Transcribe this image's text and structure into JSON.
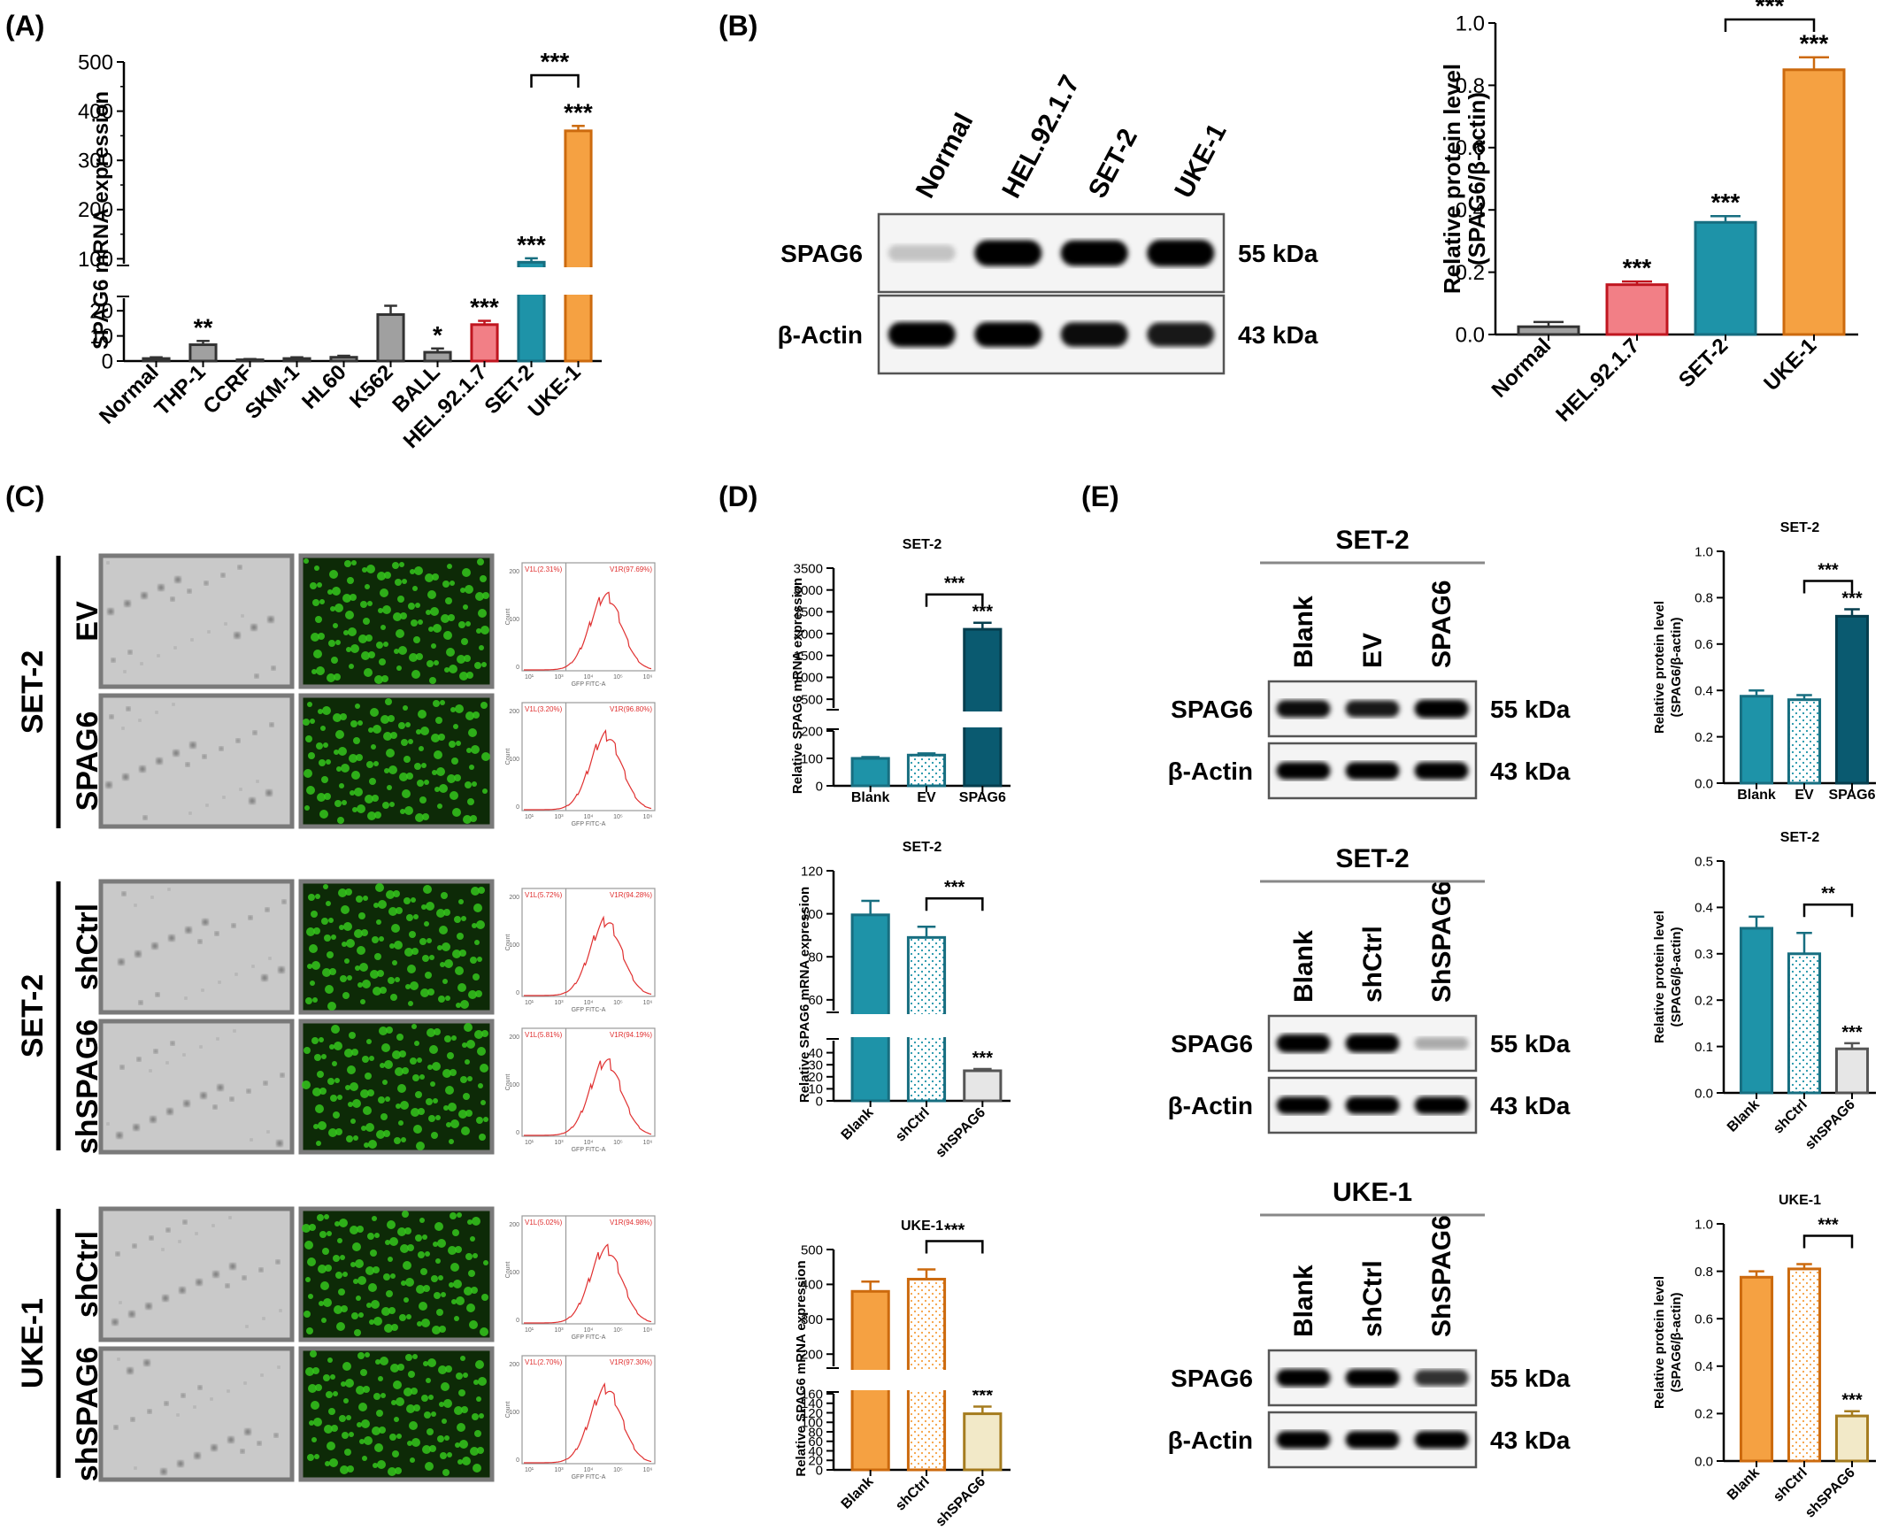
{
  "panel_labels": [
    "(A)",
    "(B)",
    "(C)",
    "(D)",
    "(E)"
  ],
  "colors": {
    "gray": "#a0a0a0",
    "red": "#f27f86",
    "teal": "#1e93a8",
    "orange": "#f5a142",
    "dark_teal": "#0a5a70",
    "light": "#e6e6e6",
    "cream": "#f2e9c8",
    "green": "#35c51c"
  },
  "panelB_blot": {
    "lanes": [
      "Normal",
      "HEL.92.1.7",
      "SET-2",
      "UKE-1"
    ],
    "rows": [
      {
        "name": "SPAG6",
        "size": "55 kDa"
      },
      {
        "name": "β-Actin",
        "size": "43 kDa"
      }
    ]
  },
  "panelC": {
    "groups": [
      {
        "cell": "SET-2",
        "rows": [
          {
            "label": "EV",
            "v1l": "V1L(2.31%)",
            "v1r": "V1R(97.69%)"
          },
          {
            "label": "SPAG6",
            "v1l": "V1L(3.20%)",
            "v1r": "V1R(96.80%)"
          }
        ]
      },
      {
        "cell": "SET-2",
        "rows": [
          {
            "label": "shCtrl",
            "v1l": "V1L(5.72%)",
            "v1r": "V1R(94.28%)"
          },
          {
            "label": "shSPAG6",
            "v1l": "V1L(5.81%)",
            "v1r": "V1R(94.19%)"
          }
        ]
      },
      {
        "cell": "UKE-1",
        "rows": [
          {
            "label": "shCtrl",
            "v1l": "V1L(5.02%)",
            "v1r": "V1R(94.98%)"
          },
          {
            "label": "shSPAG6",
            "v1l": "V1L(2.70%)",
            "v1r": "V1R(97.30%)"
          }
        ]
      }
    ],
    "flow_xlabel": "GFP FITC-A",
    "flow_ylabel": "Count",
    "flow_xticks": [
      "10¹",
      "10³",
      "10⁴",
      "10⁵",
      "10⁶"
    ],
    "flow_yticks": [
      "200",
      "100",
      "0"
    ]
  },
  "panelE_blots": [
    {
      "title": "SET-2",
      "lanes": [
        "Blank",
        "EV",
        "SPAG6"
      ],
      "rows": [
        {
          "name": "SPAG6",
          "size": "55 kDa"
        },
        {
          "name": "β-Actin",
          "size": "43 kDa"
        }
      ]
    },
    {
      "title": "SET-2",
      "lanes": [
        "Blank",
        "shCtrl",
        "ShSPAG6"
      ],
      "rows": [
        {
          "name": "SPAG6",
          "size": "55 kDa"
        },
        {
          "name": "β-Actin",
          "size": "43 kDa"
        }
      ]
    },
    {
      "title": "UKE-1",
      "lanes": [
        "Blank",
        "shCtrl",
        "ShSPAG6"
      ],
      "rows": [
        {
          "name": "SPAG6",
          "size": "55 kDa"
        },
        {
          "name": "β-Actin",
          "size": "43 kDa"
        }
      ]
    }
  ],
  "chart_data": [
    {
      "id": "A",
      "type": "bar",
      "title": "",
      "ylabel": "SPAG6 mRNA expression",
      "categories": [
        "Normal",
        "THP-1",
        "CCRF",
        "SKM-1",
        "HL60",
        "K562",
        "BALL",
        "HEL.92.1.7",
        "SET-2",
        "UKE-1"
      ],
      "values": [
        1,
        6.5,
        0.5,
        1,
        1.5,
        18.5,
        3.5,
        14.5,
        93,
        360
      ],
      "errors": [
        0.5,
        1.5,
        0.3,
        0.5,
        0.6,
        3.5,
        1.5,
        1.5,
        8,
        10
      ],
      "colors": [
        "gray",
        "gray",
        "gray",
        "gray",
        "gray",
        "gray",
        "gray",
        "red",
        "teal",
        "orange"
      ],
      "stars": [
        "",
        "**",
        "",
        "",
        "",
        "***",
        "*",
        "***",
        "***",
        "***"
      ],
      "comparison": {
        "from": 8,
        "to": 9,
        "label": "***"
      },
      "axis_break": {
        "lower": [
          0,
          25
        ],
        "upper": [
          90,
          500
        ]
      },
      "lower_ticks": [
        0,
        10,
        20
      ],
      "upper_ticks": [
        100,
        200,
        300,
        400,
        500
      ]
    },
    {
      "id": "B",
      "type": "bar",
      "title": "",
      "ylabel": "Relative protein level",
      "ylabel2": "(SPAG6/β-actin)",
      "categories": [
        "Normal",
        "HEL.92.1.7",
        "SET-2",
        "UKE-1"
      ],
      "values": [
        0.025,
        0.16,
        0.36,
        0.85
      ],
      "errors": [
        0.015,
        0.01,
        0.02,
        0.04
      ],
      "colors": [
        "gray",
        "red",
        "teal",
        "orange"
      ],
      "stars": [
        "",
        "***",
        "***",
        "***"
      ],
      "comparison": {
        "from": 2,
        "to": 3,
        "label": "***"
      },
      "ylim": [
        0,
        1.0
      ],
      "yticks": [
        "0.0",
        "0.2",
        "0.4",
        "0.6",
        "0.8",
        "1.0"
      ]
    },
    {
      "id": "D1",
      "type": "bar",
      "title": "SET-2",
      "ylabel": "Relative SPAG6 mRNA expression",
      "categories": [
        "Blank",
        "EV",
        "SPAG6"
      ],
      "values": [
        100,
        112,
        2100
      ],
      "errors": [
        5,
        6,
        150
      ],
      "colors": [
        "teal",
        "dotted-teal",
        "dark_teal"
      ],
      "stars": [
        "",
        "",
        "***"
      ],
      "comparison": {
        "from": 1,
        "to": 2,
        "label": "***"
      },
      "axis_break": {
        "lower": [
          0,
          200
        ],
        "upper": [
          300,
          3500
        ]
      },
      "lower_ticks": [
        0,
        100,
        200
      ],
      "upper_ticks": [
        500,
        1000,
        1500,
        2000,
        2500,
        3000,
        3500
      ]
    },
    {
      "id": "D2",
      "type": "bar",
      "title": "SET-2",
      "ylabel": "Relative SPAG6 mRNA expression",
      "categories": [
        "Blank",
        "shCtrl",
        "shSPAG6"
      ],
      "values": [
        99.5,
        89,
        25
      ],
      "errors": [
        6.5,
        5,
        1.5
      ],
      "colors": [
        "teal",
        "dotted-teal",
        "light"
      ],
      "stars": [
        "",
        "",
        "***"
      ],
      "comparison": {
        "from": 1,
        "to": 2,
        "label": "***"
      },
      "axis_break": {
        "lower": [
          0,
          50
        ],
        "upper": [
          55,
          120
        ]
      },
      "lower_ticks": [
        0,
        10,
        20,
        30,
        40
      ],
      "upper_ticks": [
        60,
        80,
        100,
        120
      ]
    },
    {
      "id": "D3",
      "type": "bar",
      "title": "UKE-1",
      "ylabel": "Relative SPAG6 mRNA expression",
      "categories": [
        "Blank",
        "shCtrl",
        "shSPAG6"
      ],
      "values": [
        380,
        415,
        118
      ],
      "errors": [
        28,
        28,
        15
      ],
      "colors": [
        "orange",
        "dotted-orange",
        "cream"
      ],
      "stars": [
        "",
        "",
        "***"
      ],
      "comparison": {
        "from": 1,
        "to": 2,
        "label": "***"
      },
      "axis_break": {
        "lower": [
          0,
          160
        ],
        "upper": [
          165,
          500
        ]
      },
      "lower_ticks": [
        0,
        20,
        40,
        60,
        80,
        100,
        120,
        140,
        160
      ],
      "upper_ticks": [
        200,
        300,
        400,
        500
      ]
    },
    {
      "id": "E1",
      "type": "bar",
      "title": "SET-2",
      "ylabel": "Relative protein level",
      "ylabel2": "(SPAG6/β-actin)",
      "categories": [
        "Blank",
        "EV",
        "SPAG6"
      ],
      "values": [
        0.375,
        0.36,
        0.72
      ],
      "errors": [
        0.025,
        0.02,
        0.03
      ],
      "colors": [
        "teal",
        "dotted-teal",
        "dark_teal"
      ],
      "stars": [
        "",
        "",
        "***"
      ],
      "comparison": {
        "from": 1,
        "to": 2,
        "label": "***"
      },
      "ylim": [
        0,
        1.0
      ],
      "yticks": [
        "0.0",
        "0.2",
        "0.4",
        "0.6",
        "0.8",
        "1.0"
      ]
    },
    {
      "id": "E2",
      "type": "bar",
      "title": "SET-2",
      "ylabel": "Relative protein level",
      "ylabel2": "(SPAG6/β-actin)",
      "categories": [
        "Blank",
        "shCtrl",
        "shSPAG6"
      ],
      "values": [
        0.355,
        0.3,
        0.095
      ],
      "errors": [
        0.025,
        0.045,
        0.012
      ],
      "colors": [
        "teal",
        "dotted-teal",
        "light"
      ],
      "stars": [
        "",
        "",
        "***"
      ],
      "comparison": {
        "from": 1,
        "to": 2,
        "label": "**"
      },
      "ylim": [
        0,
        0.5
      ],
      "yticks": [
        "0.0",
        "0.1",
        "0.2",
        "0.3",
        "0.4",
        "0.5"
      ]
    },
    {
      "id": "E3",
      "type": "bar",
      "title": "UKE-1",
      "ylabel": "Relative protein level",
      "ylabel2": "(SPAG6/β-actin)",
      "categories": [
        "Blank",
        "shCtrl",
        "shSPAG6"
      ],
      "values": [
        0.775,
        0.81,
        0.19
      ],
      "errors": [
        0.025,
        0.02,
        0.02
      ],
      "colors": [
        "orange",
        "dotted-orange",
        "cream"
      ],
      "stars": [
        "",
        "",
        "***"
      ],
      "comparison": {
        "from": 1,
        "to": 2,
        "label": "***"
      },
      "ylim": [
        0,
        1.0
      ],
      "yticks": [
        "0.0",
        "0.2",
        "0.4",
        "0.6",
        "0.8",
        "1.0"
      ]
    }
  ]
}
